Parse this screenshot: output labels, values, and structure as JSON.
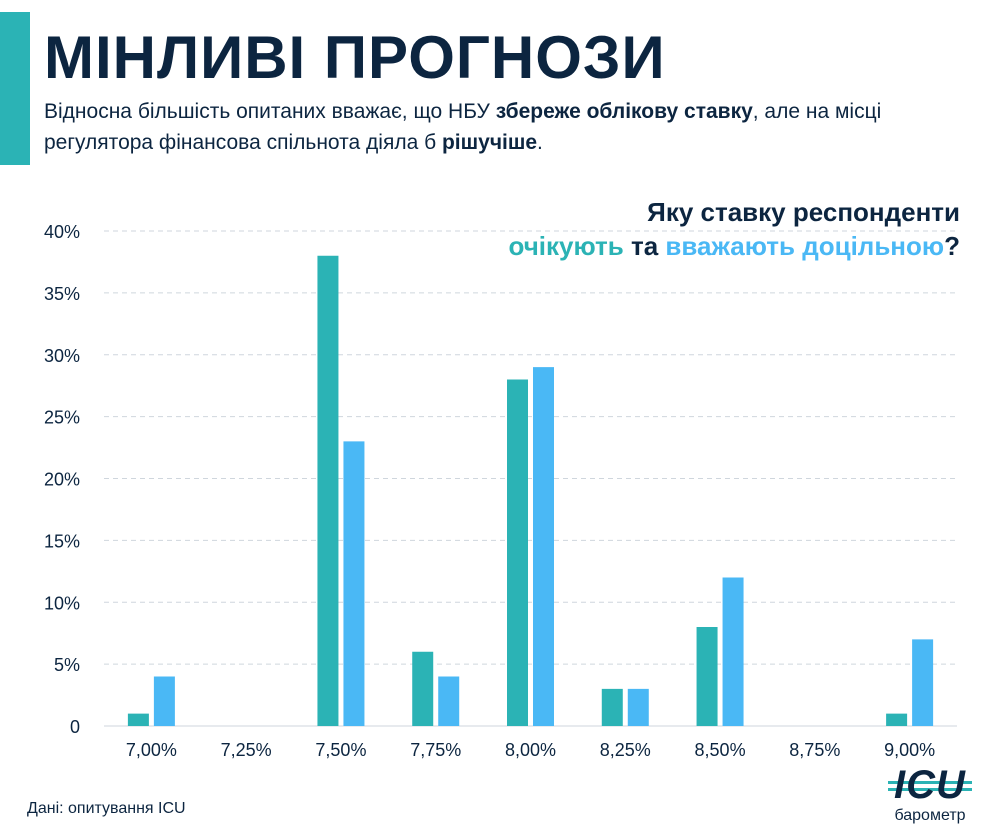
{
  "header": {
    "title": "МІНЛИВІ ПРОГНОЗИ",
    "subtitle_parts": [
      {
        "text": "Відносна більшість опитаних вважає, що НБУ ",
        "bold": false
      },
      {
        "text": "збереже облікову ставку",
        "bold": true
      },
      {
        "text": ", але на місці регулятора фінансова спільнота діяла б ",
        "bold": false
      },
      {
        "text": "рішучіше",
        "bold": true
      },
      {
        "text": ".",
        "bold": false
      }
    ]
  },
  "question": {
    "line1": "Яку ставку респонденти",
    "expect": "очікують",
    "and": " та ",
    "appropriate": "вважають доцільною",
    "qmark": "?"
  },
  "chart_data": {
    "type": "bar",
    "categories": [
      "7,00%",
      "7,25%",
      "7,50%",
      "7,75%",
      "8,00%",
      "8,25%",
      "8,50%",
      "8,75%",
      "9,00%"
    ],
    "series": [
      {
        "name": "очікують",
        "color": "#2bb3b5",
        "values": [
          1,
          0,
          38,
          6,
          28,
          3,
          8,
          0,
          1
        ]
      },
      {
        "name": "вважають доцільною",
        "color": "#4ab8f5",
        "values": [
          4,
          0,
          23,
          4,
          29,
          3,
          12,
          0,
          7
        ]
      }
    ],
    "yticks": [
      "0",
      "5%",
      "10%",
      "15%",
      "20%",
      "25%",
      "30%",
      "35%",
      "40%"
    ],
    "ylim": [
      0,
      40
    ],
    "grid": true
  },
  "footer": {
    "source": "Дані: опитування ICU",
    "logo_text": "ICU",
    "logo_sub": "барометр"
  }
}
